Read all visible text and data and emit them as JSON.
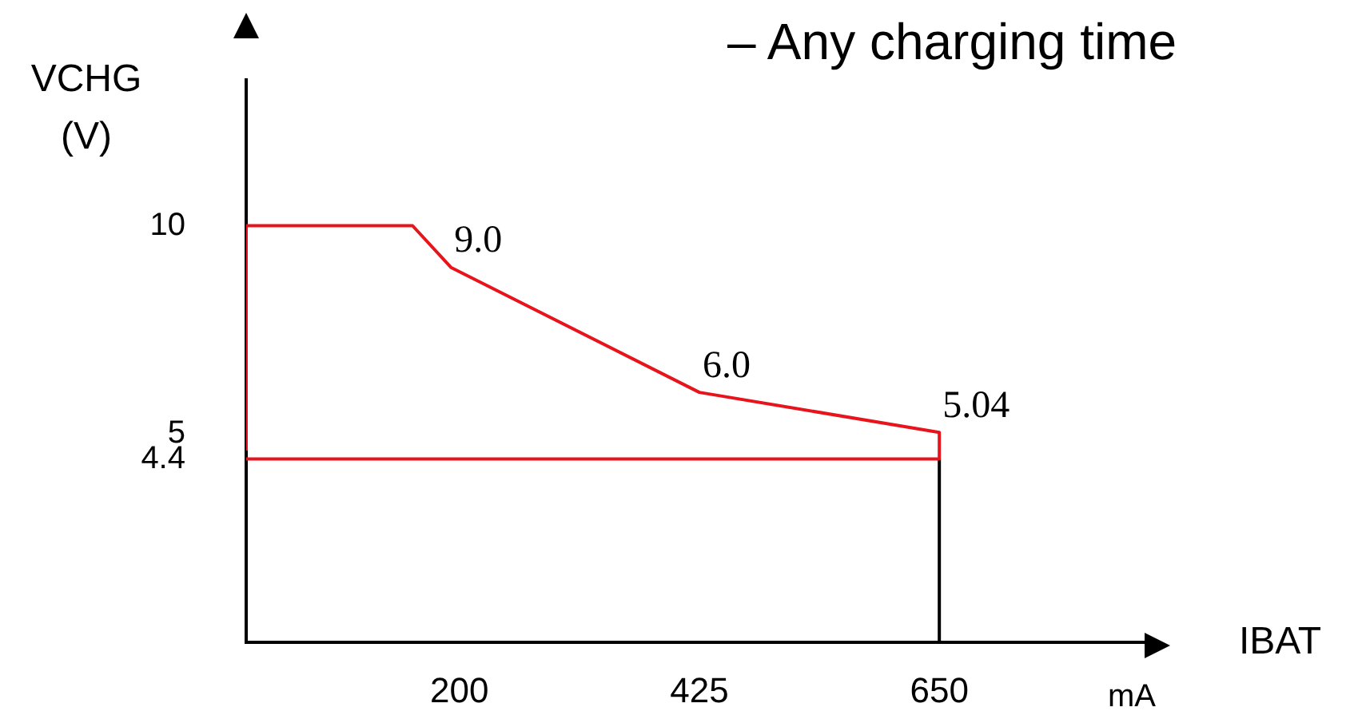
{
  "chart_data": {
    "type": "line",
    "title": "– Any charging time",
    "xlabel": "IBAT",
    "ylabel": "VCHG (V)",
    "annotations": [
      "mA"
    ],
    "xlim": [
      0,
      850
    ],
    "xticks": [
      200,
      425,
      650
    ],
    "ylim": [
      0,
      13.5
    ],
    "yticks": [
      10,
      5,
      4.4
    ],
    "grid": false,
    "legend": false,
    "marker": "none",
    "line_style": "solid",
    "series": [
      {
        "color": "#e8141b",
        "x": [
          0,
          0,
          156,
          192,
          425,
          650,
          650
        ],
        "values": [
          4.6,
          10,
          10,
          9.0,
          6.0,
          5.04,
          4.4
        ],
        "value_labels": [
          null,
          null,
          null,
          "9.0",
          "6.0",
          "5.04",
          null
        ]
      },
      {
        "color": "#e8141b",
        "x": [
          0,
          650
        ],
        "values": [
          4.4,
          4.4
        ]
      },
      {
        "color": "#000000",
        "x": [
          650,
          650
        ],
        "values": [
          0,
          4.4
        ]
      }
    ]
  }
}
